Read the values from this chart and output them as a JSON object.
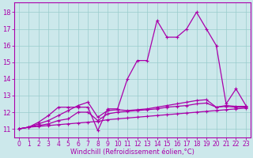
{
  "title": "",
  "xlabel": "Windchill (Refroidissement éolien,°C)",
  "ylabel": "",
  "background_color": "#cce8eb",
  "grid_color": "#99cccc",
  "line_color": "#aa00aa",
  "xlim": [
    -0.5,
    23.5
  ],
  "ylim": [
    10.5,
    18.6
  ],
  "yticks": [
    11,
    12,
    13,
    14,
    15,
    16,
    17,
    18
  ],
  "xticks": [
    0,
    1,
    2,
    3,
    4,
    5,
    6,
    7,
    8,
    9,
    10,
    11,
    12,
    13,
    14,
    15,
    16,
    17,
    18,
    19,
    20,
    21,
    22,
    23
  ],
  "series": [
    [
      11.0,
      11.1,
      11.15,
      11.2,
      11.25,
      11.3,
      11.35,
      11.4,
      11.45,
      11.55,
      11.6,
      11.65,
      11.7,
      11.75,
      11.8,
      11.85,
      11.9,
      11.95,
      12.0,
      12.05,
      12.1,
      12.15,
      12.2,
      12.25
    ],
    [
      11.0,
      11.1,
      11.2,
      11.3,
      11.5,
      11.6,
      12.0,
      12.0,
      11.5,
      11.9,
      12.0,
      12.05,
      12.1,
      12.15,
      12.2,
      12.3,
      12.35,
      12.4,
      12.5,
      12.55,
      12.3,
      12.35,
      12.3,
      12.3
    ],
    [
      11.0,
      11.1,
      11.3,
      11.5,
      11.8,
      12.1,
      12.4,
      12.6,
      11.7,
      12.1,
      12.15,
      12.1,
      12.15,
      12.2,
      12.3,
      12.4,
      12.5,
      12.6,
      12.7,
      12.75,
      12.3,
      12.4,
      12.35,
      12.35
    ],
    [
      11.0,
      11.1,
      11.4,
      11.8,
      12.3,
      12.3,
      12.3,
      12.3,
      10.9,
      12.2,
      12.2,
      14.0,
      15.1,
      15.1,
      17.5,
      16.5,
      16.5,
      17.0,
      18.0,
      17.0,
      16.0,
      12.5,
      13.4,
      12.4
    ]
  ],
  "figsize": [
    3.2,
    2.0
  ],
  "dpi": 100,
  "xlabel_fontsize": 6,
  "tick_fontsize": 5.5,
  "linewidth": 0.9,
  "markersize": 3,
  "markeredgewidth": 0.8
}
